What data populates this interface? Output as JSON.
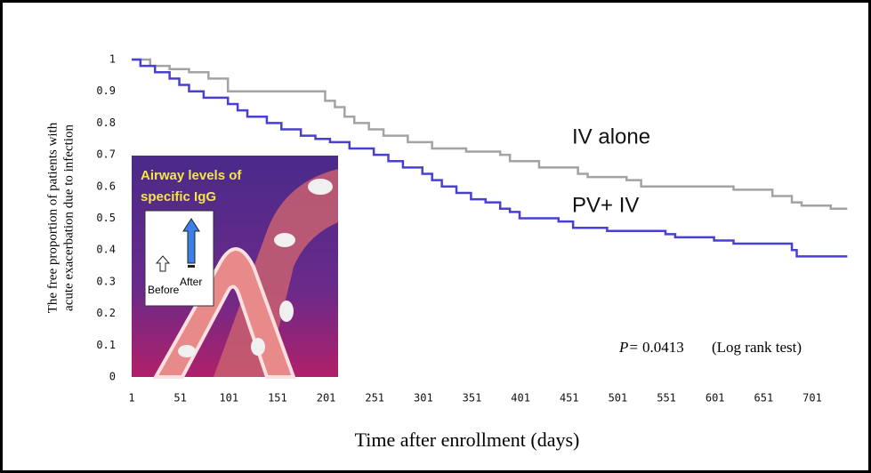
{
  "chart_data": {
    "type": "step",
    "y_title": [
      "The free proportion of patients with",
      "acute exacerbation due to infection"
    ],
    "x_title": "Time after enrollment (days)",
    "xlim": [
      1,
      737
    ],
    "ylim": [
      0,
      1
    ],
    "xticks": [
      1,
      51,
      101,
      151,
      201,
      251,
      301,
      351,
      401,
      451,
      501,
      551,
      601,
      651,
      701
    ],
    "yticks": [
      0,
      0.1,
      0.2,
      0.3,
      0.4,
      0.5,
      0.6,
      0.7,
      0.8,
      0.9,
      1
    ],
    "series": [
      {
        "name": "IV alone",
        "color": "#a3a3a3",
        "x": [
          1,
          20,
          40,
          60,
          80,
          100,
          200,
          210,
          220,
          230,
          245,
          260,
          285,
          310,
          345,
          380,
          390,
          420,
          460,
          470,
          510,
          525,
          620,
          660,
          680,
          690,
          720,
          737
        ],
        "values": [
          1,
          0.98,
          0.97,
          0.96,
          0.94,
          0.9,
          0.87,
          0.85,
          0.82,
          0.8,
          0.78,
          0.76,
          0.74,
          0.72,
          0.71,
          0.7,
          0.68,
          0.66,
          0.64,
          0.63,
          0.62,
          0.6,
          0.59,
          0.57,
          0.55,
          0.54,
          0.53,
          0.53
        ]
      },
      {
        "name": "PV+ IV",
        "color": "#4a3fd4",
        "x": [
          1,
          10,
          25,
          40,
          50,
          60,
          75,
          100,
          110,
          120,
          140,
          155,
          175,
          190,
          205,
          225,
          250,
          265,
          280,
          300,
          310,
          320,
          335,
          350,
          365,
          380,
          390,
          400,
          440,
          455,
          490,
          550,
          560,
          600,
          620,
          680,
          685,
          737
        ],
        "values": [
          1,
          0.98,
          0.96,
          0.94,
          0.92,
          0.9,
          0.88,
          0.86,
          0.84,
          0.82,
          0.8,
          0.78,
          0.76,
          0.75,
          0.74,
          0.72,
          0.7,
          0.68,
          0.66,
          0.64,
          0.62,
          0.6,
          0.58,
          0.56,
          0.55,
          0.53,
          0.52,
          0.5,
          0.49,
          0.47,
          0.46,
          0.45,
          0.44,
          0.43,
          0.42,
          0.4,
          0.38,
          0.38
        ]
      }
    ],
    "annotations": [
      "P=",
      "0.0413",
      "(Log rank test)"
    ],
    "inset": {
      "title": [
        "Airway levels of",
        "specific IgG"
      ],
      "before": "Before",
      "after": "After"
    }
  }
}
